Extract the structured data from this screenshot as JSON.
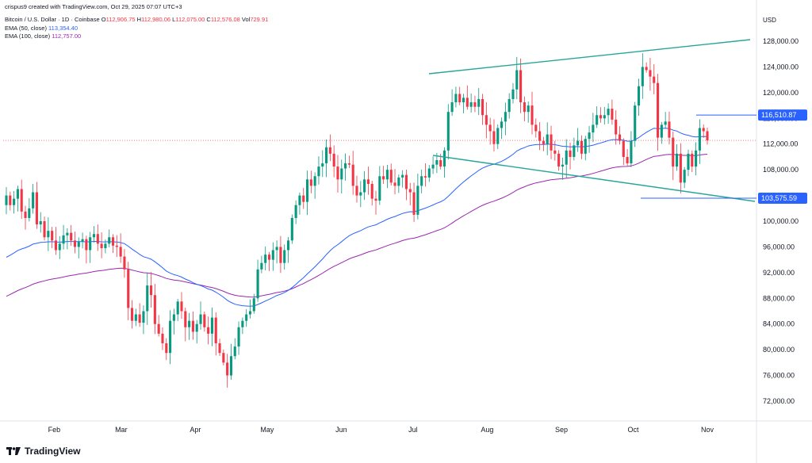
{
  "header": {
    "credit": "crispus9 created with TradingView.com, Oct 29, 2025 07:07 UTC+3",
    "symbol": "Bitcoin / U.S. Dollar · 1D · Coinbase",
    "ohlc": {
      "o_label": "O",
      "o": "112,906.75",
      "h_label": "H",
      "h": "112,980.06",
      "l_label": "L",
      "l": "112,075.00",
      "c_label": "C",
      "c": "112,576.08",
      "vol_label": "Vol",
      "vol": "729.91"
    },
    "ema50": {
      "label": "EMA (50, close)",
      "value": "113,354.40"
    },
    "ema100": {
      "label": "EMA (100, close)",
      "value": "112,757.00"
    }
  },
  "currency": "USD",
  "brand": "TradingView",
  "colors": {
    "up": "#089981",
    "down": "#f23645",
    "ema50": "#2962ff",
    "ema100": "#9c27b0",
    "trend": "#26a69a",
    "hline": "#2962ff"
  },
  "chart_data": {
    "type": "candlestick",
    "y_range": [
      70000,
      129000
    ],
    "y_ticks": [
      "128,000.00",
      "124,000.00",
      "120,000.00",
      "116,000.00",
      "112,000.00",
      "108,000.00",
      "104,000.00",
      "100,000.00",
      "96,000.00",
      "92,000.00",
      "88,000.00",
      "84,000.00",
      "80,000.00",
      "76,000.00",
      "72,000.00"
    ],
    "x_ticks": [
      "Feb",
      "Mar",
      "Apr",
      "May",
      "Jun",
      "Jul",
      "Aug",
      "Sep",
      "Oct",
      "Nov"
    ],
    "close_markers": [
      {
        "label": "116,510.87",
        "value": 116510.87
      },
      {
        "label": "103,575.59",
        "value": 103575.59
      }
    ],
    "current_price": 112576.08,
    "series_close": [
      104000,
      102500,
      103500,
      105000,
      101500,
      100500,
      102000,
      104500,
      99500,
      100000,
      97500,
      98500,
      97000,
      95500,
      96500,
      97800,
      98200,
      97000,
      96000,
      96800,
      97200,
      95500,
      97500,
      98000,
      96500,
      95800,
      96500,
      97500,
      96200,
      96000,
      94500,
      92500,
      86500,
      84500,
      85500,
      84200,
      86000,
      90000,
      88500,
      84000,
      82500,
      81000,
      79500,
      84500,
      85500,
      87500,
      86000,
      83500,
      84500,
      82800,
      84000,
      85500,
      83500,
      82500,
      85000,
      81000,
      79500,
      78000,
      76000,
      79000,
      80500,
      83500,
      84500,
      85500,
      86000,
      88000,
      92500,
      93500,
      94800,
      94000,
      95500,
      96000,
      93500,
      95500,
      97000,
      100500,
      102500,
      104000,
      103000,
      106500,
      105500,
      107000,
      108500,
      109000,
      111500,
      110500,
      108500,
      106500,
      108200,
      109000,
      108800,
      105500,
      104000,
      104500,
      106500,
      105800,
      103500,
      103200,
      107000,
      106500,
      108000,
      106000,
      105500,
      106800,
      107200,
      105000,
      104500,
      101000,
      105500,
      107000,
      106800,
      108200,
      108800,
      109500,
      108500,
      111000,
      117000,
      118500,
      119800,
      118500,
      119200,
      117800,
      118500,
      117800,
      119000,
      116500,
      115000,
      114000,
      112000,
      114500,
      115500,
      117000,
      119000,
      120500,
      123500,
      118500,
      117000,
      118000,
      115000,
      114000,
      112500,
      112000,
      113500,
      111000,
      110500,
      108500,
      108800,
      111000,
      110000,
      111800,
      112500,
      110500,
      112800,
      113800,
      115000,
      116500,
      116000,
      116500,
      117500,
      115800,
      113500,
      112500,
      110000,
      109000,
      112500,
      118000,
      121000,
      124000,
      123500,
      122500,
      121500,
      113000,
      115000,
      115500,
      113000,
      108500,
      110500,
      106000,
      108000,
      110500,
      108500,
      111000,
      114500,
      114000,
      112576
    ]
  }
}
